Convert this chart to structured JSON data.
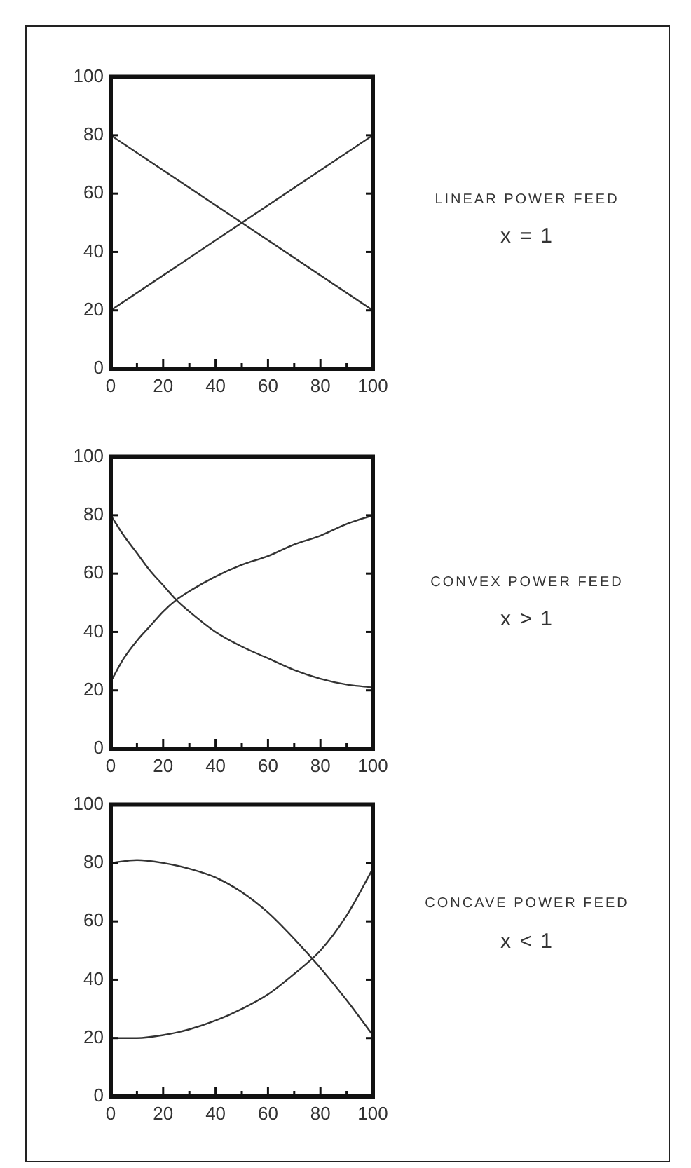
{
  "chart_data": [
    {
      "type": "line",
      "annotations": [
        "LINEAR POWER FEED",
        "x = 1"
      ],
      "x": [
        0,
        100
      ],
      "series": [
        {
          "color": "#333333",
          "values": [
            20,
            80
          ]
        },
        {
          "color": "#333333",
          "values": [
            80,
            20
          ]
        }
      ],
      "xlim": [
        0,
        100
      ],
      "ylim": [
        0,
        100
      ],
      "xticks": [
        0,
        {
          "value": 10,
          "label": null
        },
        20,
        {
          "value": 30,
          "label": null
        },
        40,
        {
          "value": 50,
          "label": null
        },
        60,
        {
          "value": 70,
          "label": null
        },
        80,
        {
          "value": 90,
          "label": null
        },
        100
      ],
      "yticks": [
        0,
        20,
        40,
        60,
        80,
        100
      ]
    },
    {
      "type": "line",
      "annotations": [
        "CONVEX POWER FEED",
        "x > 1"
      ],
      "x": [
        0,
        5,
        10,
        15,
        20,
        25,
        30,
        40,
        50,
        60,
        70,
        80,
        90,
        100
      ],
      "series": [
        {
          "color": "#333333",
          "values": [
            23,
            31,
            37,
            42,
            47,
            51,
            54,
            59,
            63,
            66,
            70,
            73,
            77,
            80
          ]
        },
        {
          "color": "#333333",
          "values": [
            80,
            73,
            67,
            61,
            56,
            51,
            47,
            40,
            35,
            31,
            27,
            24,
            22,
            21
          ]
        }
      ],
      "xlim": [
        0,
        100
      ],
      "ylim": [
        0,
        100
      ],
      "xticks": [
        0,
        {
          "value": 10,
          "label": null
        },
        20,
        {
          "value": 30,
          "label": null
        },
        40,
        {
          "value": 50,
          "label": null
        },
        60,
        {
          "value": 70,
          "label": null
        },
        80,
        {
          "value": 90,
          "label": null
        },
        100
      ],
      "yticks": [
        0,
        20,
        40,
        60,
        80,
        100
      ]
    },
    {
      "type": "line",
      "annotations": [
        "CONCAVE POWER FEED",
        "x < 1"
      ],
      "x": [
        0,
        10,
        20,
        30,
        40,
        50,
        60,
        70,
        80,
        90,
        100
      ],
      "series": [
        {
          "color": "#333333",
          "values": [
            80,
            81,
            80,
            78,
            75,
            70,
            63,
            54,
            44,
            33,
            21
          ]
        },
        {
          "color": "#333333",
          "values": [
            20,
            20,
            21,
            23,
            26,
            30,
            35,
            42,
            50,
            62,
            78
          ]
        }
      ],
      "xlim": [
        0,
        100
      ],
      "ylim": [
        0,
        100
      ],
      "xticks": [
        0,
        {
          "value": 10,
          "label": null
        },
        20,
        {
          "value": 30,
          "label": null
        },
        40,
        {
          "value": 50,
          "label": null
        },
        60,
        {
          "value": 70,
          "label": null
        },
        80,
        {
          "value": 90,
          "label": null
        },
        100
      ],
      "yticks": [
        0,
        20,
        40,
        60,
        80,
        100
      ]
    }
  ]
}
